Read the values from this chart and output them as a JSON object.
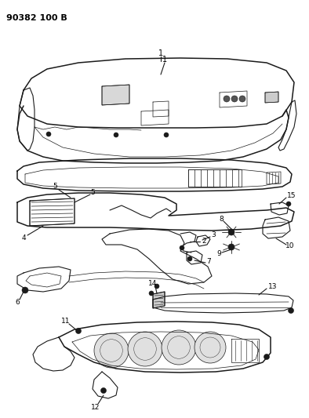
{
  "title": "90382 100 B",
  "title_fontsize": 8,
  "bg_color": "#ffffff",
  "line_color": "#1a1a1a",
  "label_color": "#000000",
  "fig_width": 3.94,
  "fig_height": 5.33,
  "dpi": 100
}
